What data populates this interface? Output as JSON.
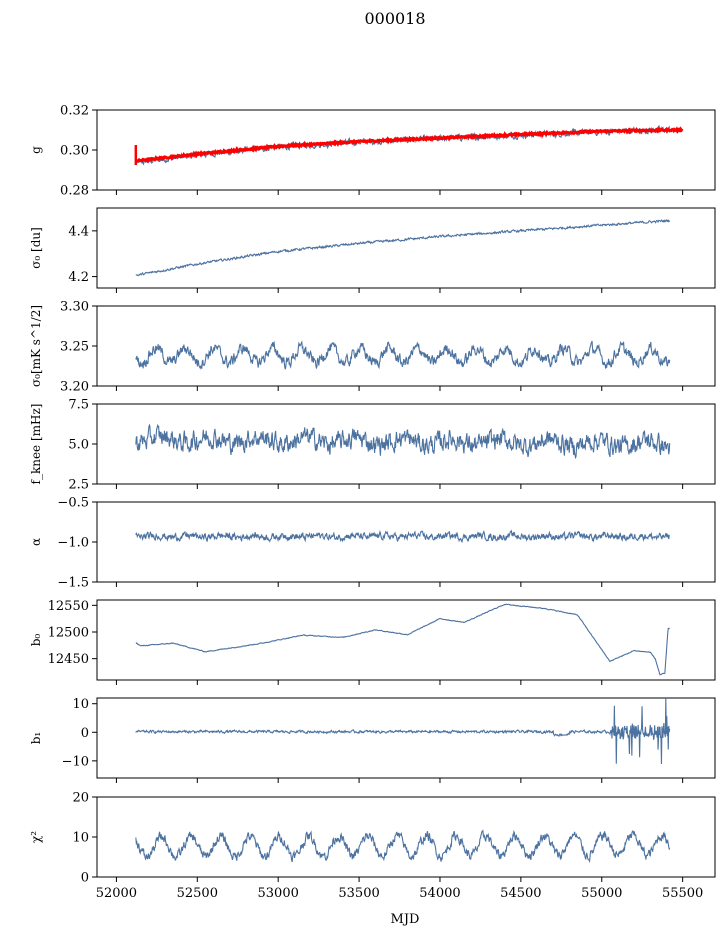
{
  "figure": {
    "title": "000018",
    "xlabel": "MJD"
  },
  "chart_data": {
    "type": "line",
    "title": "000018",
    "xlabel": "MJD",
    "xlim": [
      51880,
      55700
    ],
    "xticks": [
      "52000",
      "52500",
      "53000",
      "53500",
      "54000",
      "54500",
      "55000",
      "55500"
    ],
    "x_start": 52120,
    "x_end": 55420,
    "series_color": "#4c72a0",
    "model_color": "#ff0000",
    "panels": [
      {
        "id": "g",
        "ylabel": "g",
        "ylim": [
          0.28,
          0.32
        ],
        "yticks": [
          "0.28",
          "0.30",
          "0.32"
        ],
        "series": [
          {
            "name": "",
            "trend": [
              [
                52120,
                0.2935
              ],
              [
                52500,
                0.2975
              ],
              [
                53000,
                0.3015
              ],
              [
                53500,
                0.304
              ],
              [
                54000,
                0.3058
              ],
              [
                54500,
                0.3075
              ],
              [
                55000,
                0.309
              ],
              [
                55420,
                0.3103
              ]
            ],
            "noise": 0.0012,
            "wave": 0,
            "period": 365
          }
        ],
        "overlay": {
          "name": "",
          "trend": [
            [
              52120,
              0.2945
            ],
            [
              52500,
              0.298
            ],
            [
              53000,
              0.3018
            ],
            [
              53500,
              0.3042
            ],
            [
              54000,
              0.306
            ],
            [
              54500,
              0.3078
            ],
            [
              55000,
              0.3094
            ],
            [
              55420,
              0.31
            ]
          ],
          "noise": 0.0004,
          "spike": [
            [
              52120,
              0.2925,
              0.3025
            ]
          ]
        }
      },
      {
        "id": "sigma0-du",
        "ylabel": "σ₀ [du]",
        "ylim": [
          4.15,
          4.5
        ],
        "yticks": [
          "4.2",
          "4.4"
        ],
        "series": [
          {
            "name": "",
            "trend": [
              [
                52120,
                4.205
              ],
              [
                52500,
                4.255
              ],
              [
                53000,
                4.31
              ],
              [
                53500,
                4.345
              ],
              [
                54000,
                4.375
              ],
              [
                54500,
                4.4
              ],
              [
                55000,
                4.425
              ],
              [
                55420,
                4.445
              ]
            ],
            "noise": 0.004,
            "wave": 0,
            "period": 365
          }
        ]
      },
      {
        "id": "sigma0-mk",
        "ylabel": "σ₀[mK s^1/2]",
        "ylim": [
          3.2,
          3.3
        ],
        "yticks": [
          "3.20",
          "3.25",
          "3.30"
        ],
        "series": [
          {
            "name": "",
            "trend": [
              [
                52120,
                3.238
              ],
              [
                55420,
                3.238
              ]
            ],
            "noise": 0.006,
            "wave": 0.009,
            "period": 180
          }
        ]
      },
      {
        "id": "fknee",
        "ylabel": "f_knee [mHz]",
        "ylim": [
          2.5,
          7.5
        ],
        "yticks": [
          "2.5",
          "5.0",
          "7.5"
        ],
        "series": [
          {
            "name": "",
            "trend": [
              [
                52120,
                5.3
              ],
              [
                55420,
                5.0
              ]
            ],
            "noise": 0.5,
            "wave": 0.2,
            "period": 300
          }
        ]
      },
      {
        "id": "alpha",
        "ylabel": "α",
        "ylim": [
          -1.5,
          -0.5
        ],
        "yticks": [
          "−1.5",
          "−1.0",
          "−0.5"
        ],
        "series": [
          {
            "name": "",
            "trend": [
              [
                52120,
                -0.93
              ],
              [
                55420,
                -0.93
              ]
            ],
            "noise": 0.035,
            "wave": 0.01,
            "period": 200
          }
        ]
      },
      {
        "id": "b0",
        "ylabel": "b₀",
        "ylim": [
          12410,
          12560
        ],
        "yticks": [
          "12450",
          "12500",
          "12550"
        ],
        "series": [
          {
            "name": "",
            "trend": [
              [
                52120,
                12480
              ],
              [
                52150,
                12474
              ],
              [
                52300,
                12479
              ],
              [
                52550,
                12463
              ],
              [
                52900,
                12479
              ],
              [
                53150,
                12494
              ],
              [
                53400,
                12490
              ],
              [
                53600,
                12504
              ],
              [
                53800,
                12495
              ],
              [
                54000,
                12525
              ],
              [
                54150,
                12518
              ],
              [
                54400,
                12552
              ],
              [
                54650,
                12544
              ],
              [
                54850,
                12532
              ],
              [
                55050,
                12445
              ],
              [
                55300,
                12465
              ],
              [
                55470,
                12462
              ],
              [
                55520,
                12455
              ],
              [
                55600,
                12420
              ],
              [
                55700,
                12422
              ],
              [
                55800,
                12507
              ],
              [
                55420,
                12507
              ]
            ],
            "noise": 0.6,
            "wave": 0,
            "period": 365
          }
        ]
      },
      {
        "id": "b1",
        "ylabel": "b₁",
        "ylim": [
          -16,
          12
        ],
        "yticks": [
          "−10",
          "0",
          "10"
        ],
        "series": [
          {
            "name": "",
            "trend": [
              [
                52120,
                0.2
              ],
              [
                55420,
                0.2
              ]
            ],
            "noise": 0.35,
            "wave": 0,
            "period": 365
          }
        ]
      },
      {
        "id": "chi2",
        "ylabel": "χ²",
        "ylim": [
          0,
          20
        ],
        "yticks": [
          "0",
          "10",
          "20"
        ],
        "series": [
          {
            "name": "",
            "trend": [
              [
                52120,
                7.5
              ],
              [
                55420,
                8.0
              ]
            ],
            "noise": 1.0,
            "wave": 2.5,
            "period": 182
          }
        ]
      }
    ]
  }
}
